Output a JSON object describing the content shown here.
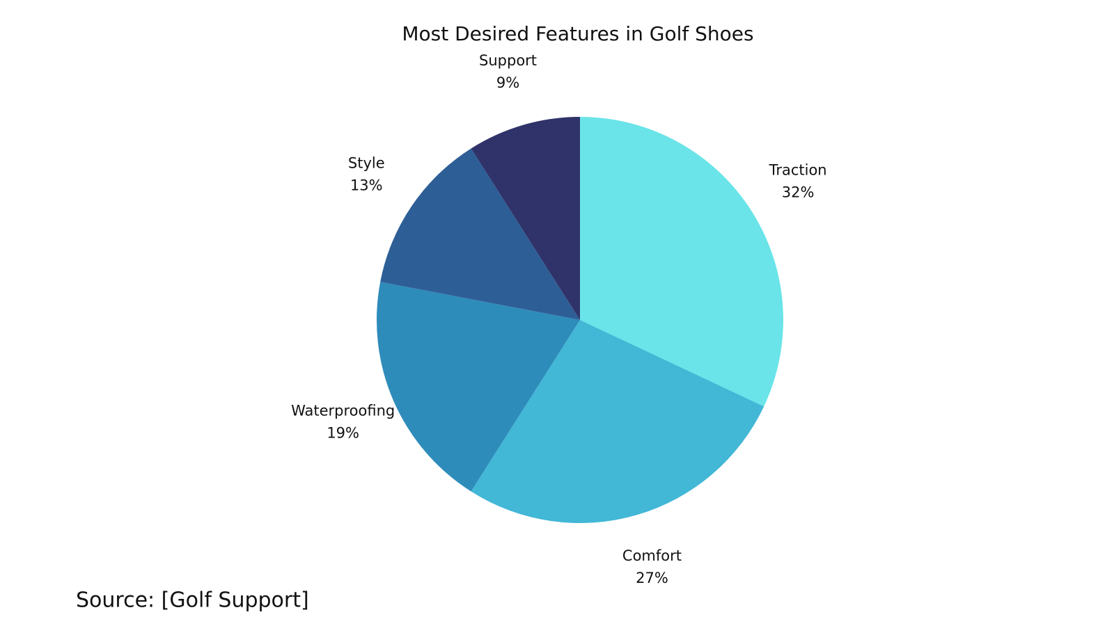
{
  "chart_data": {
    "type": "pie",
    "title": "Most Desired Features in Golf Shoes",
    "categories": [
      "Traction",
      "Comfort",
      "Waterproofing",
      "Style",
      "Support"
    ],
    "values": [
      32,
      27,
      19,
      13,
      9
    ],
    "value_labels": [
      "32%",
      "27%",
      "19%",
      "13%",
      "9%"
    ],
    "colors": [
      "#6ae4e8",
      "#42b7d6",
      "#2e8cba",
      "#2e5e96",
      "#2f3369"
    ],
    "source": "Source: [Golf Support]"
  }
}
